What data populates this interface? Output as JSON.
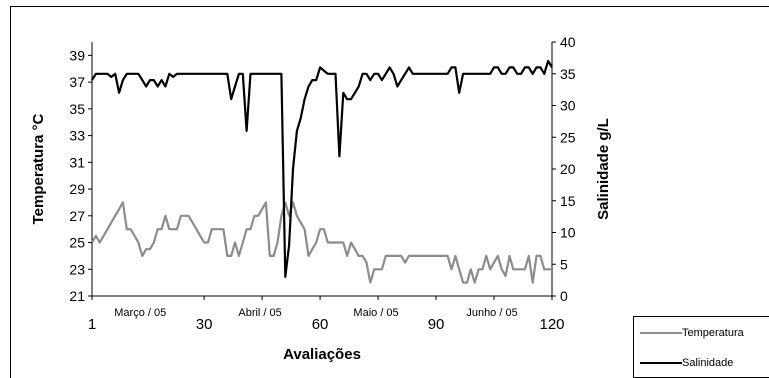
{
  "chart_data": {
    "type": "line",
    "xlabel": "Avaliações",
    "y_left_label": "Temperatura °C",
    "y_right_label": "Salinidade g/L",
    "x_range": [
      1,
      120
    ],
    "x_ticks": [
      1,
      30,
      60,
      90,
      120
    ],
    "y_left_range": [
      21,
      40
    ],
    "y_left_ticks": [
      21,
      23,
      25,
      27,
      29,
      31,
      33,
      35,
      37,
      39
    ],
    "y_right_range": [
      0,
      40
    ],
    "y_right_ticks": [
      0,
      5,
      10,
      15,
      20,
      25,
      30,
      35,
      40
    ],
    "month_labels": [
      {
        "text": "Março / 05",
        "x": 14
      },
      {
        "text": "Abril / 05",
        "x": 45
      },
      {
        "text": "Maio / 05",
        "x": 75
      },
      {
        "text": "Junho / 05",
        "x": 105
      }
    ],
    "legend_position": "bottom-right",
    "grid": false,
    "series": [
      {
        "name": "Temperatura",
        "axis": "left",
        "color": "#8c8c8c",
        "x": [
          1,
          2,
          3,
          4,
          5,
          6,
          7,
          8,
          9,
          10,
          11,
          12,
          13,
          14,
          15,
          16,
          17,
          18,
          19,
          20,
          21,
          22,
          23,
          24,
          25,
          26,
          27,
          28,
          29,
          30,
          31,
          32,
          33,
          34,
          35,
          36,
          37,
          38,
          39,
          40,
          41,
          42,
          43,
          44,
          45,
          46,
          47,
          48,
          49,
          50,
          51,
          52,
          53,
          54,
          55,
          56,
          57,
          58,
          59,
          60,
          61,
          62,
          63,
          64,
          65,
          66,
          67,
          68,
          69,
          70,
          71,
          72,
          73,
          74,
          75,
          76,
          77,
          78,
          79,
          80,
          81,
          82,
          83,
          84,
          85,
          86,
          87,
          88,
          89,
          90,
          91,
          92,
          93,
          94,
          95,
          96,
          97,
          98,
          99,
          100,
          101,
          102,
          103,
          104,
          105,
          106,
          107,
          108,
          109,
          110,
          111,
          112,
          113,
          114,
          115,
          116,
          117,
          118,
          119,
          120
        ],
        "values": [
          25,
          25.5,
          25,
          25.5,
          26,
          26.5,
          27,
          27.5,
          28,
          26,
          26,
          25.5,
          25,
          24,
          24.5,
          24.5,
          25,
          26,
          26,
          27,
          26,
          26,
          26,
          27,
          27,
          27,
          26.5,
          26,
          25.5,
          25,
          25,
          26,
          26,
          26,
          26,
          24,
          24,
          25,
          24,
          25,
          26,
          26,
          27,
          27,
          27.5,
          28,
          24,
          24,
          25,
          27,
          28,
          27,
          28,
          27,
          26.5,
          26,
          24,
          24.5,
          25,
          26,
          26,
          25,
          25,
          25,
          25,
          25,
          24,
          25,
          24.5,
          24,
          24,
          23.5,
          22,
          23,
          23,
          23,
          24,
          24,
          24,
          24,
          24,
          23.5,
          24,
          24,
          24,
          24,
          24,
          24,
          24,
          24,
          24,
          24,
          24,
          23,
          24,
          23,
          22,
          22,
          23,
          22,
          23,
          23,
          24,
          23,
          23.5,
          24,
          23,
          22.5,
          24,
          23,
          23,
          23,
          23,
          24,
          22,
          24,
          24,
          23,
          23,
          23
        ]
      },
      {
        "name": "Salinidade",
        "axis": "right",
        "color": "#000000",
        "x": [
          1,
          2,
          3,
          4,
          5,
          6,
          7,
          8,
          9,
          10,
          11,
          12,
          13,
          14,
          15,
          16,
          17,
          18,
          19,
          20,
          21,
          22,
          23,
          24,
          25,
          26,
          27,
          28,
          29,
          30,
          31,
          32,
          33,
          34,
          35,
          36,
          37,
          38,
          39,
          40,
          41,
          42,
          43,
          44,
          45,
          46,
          47,
          48,
          49,
          50,
          51,
          52,
          53,
          54,
          55,
          56,
          57,
          58,
          59,
          60,
          61,
          62,
          63,
          64,
          65,
          66,
          67,
          68,
          69,
          70,
          71,
          72,
          73,
          74,
          75,
          76,
          77,
          78,
          79,
          80,
          81,
          82,
          83,
          84,
          85,
          86,
          87,
          88,
          89,
          90,
          91,
          92,
          93,
          94,
          95,
          96,
          97,
          98,
          99,
          100,
          101,
          102,
          103,
          104,
          105,
          106,
          107,
          108,
          109,
          110,
          111,
          112,
          113,
          114,
          115,
          116,
          117,
          118,
          119,
          120
        ],
        "values": [
          34,
          35,
          35,
          35,
          35,
          34.5,
          35,
          32,
          34,
          35,
          35,
          35,
          35,
          34,
          33,
          34,
          34,
          33,
          34,
          33,
          35,
          34.5,
          35,
          35,
          35,
          35,
          35,
          35,
          35,
          35,
          35,
          35,
          35,
          35,
          35,
          35,
          31,
          33,
          35,
          35,
          26,
          35,
          35,
          35,
          35,
          35,
          35,
          35,
          35,
          35,
          3,
          8,
          20,
          26,
          28,
          31,
          33,
          34,
          34,
          36,
          35.5,
          35,
          35,
          35,
          22,
          32,
          31,
          31,
          32,
          33,
          35,
          35,
          34,
          35,
          35,
          34,
          35,
          36,
          35,
          33,
          34,
          35,
          36,
          35,
          35,
          35,
          35,
          35,
          35,
          35,
          35,
          35,
          35,
          36,
          36,
          32,
          35,
          35,
          35,
          35,
          35,
          35,
          35,
          35,
          36,
          36,
          35,
          35,
          36,
          36,
          35,
          35,
          36,
          36,
          35,
          36,
          36,
          35,
          37,
          36
        ]
      }
    ]
  }
}
